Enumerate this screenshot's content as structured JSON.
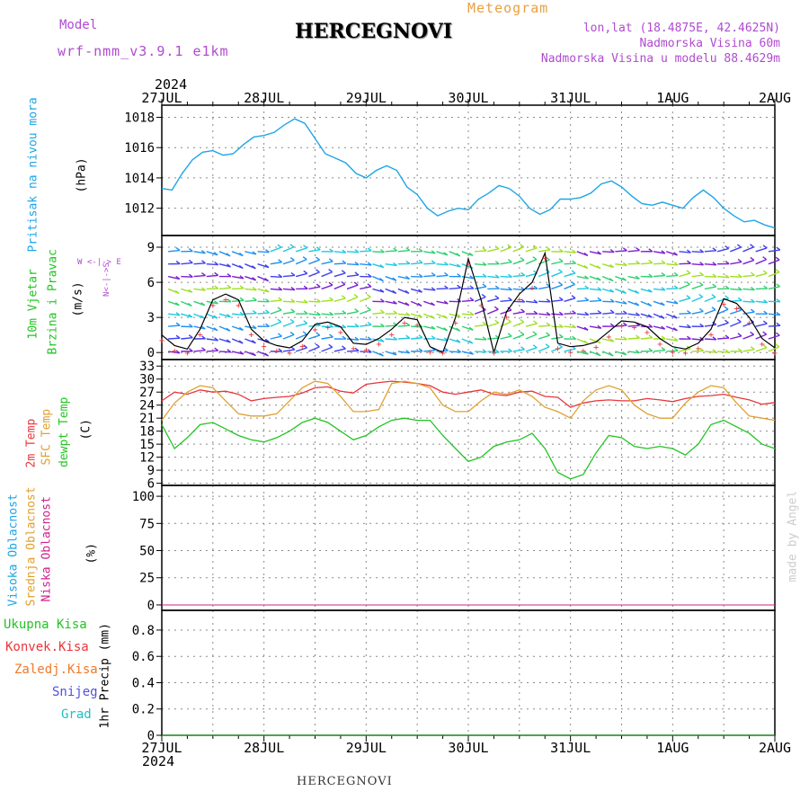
{
  "header": {
    "model_label": "Model",
    "model_name": "wrf-nmm_v3.9.1 e1km",
    "title": "HERCEGNOVI",
    "meteogram_label": "Meteogram",
    "lonlat": "lon,lat (18.4875E, 42.4625N)",
    "altitude": "Nadmorska Visina 60m",
    "model_altitude": "Nadmorska Visina u modelu 88.4629m",
    "year_top": "2024",
    "year_bottom": "2024",
    "footer": "HERCEGNOVI",
    "watermark": "made by Angel"
  },
  "colors": {
    "pressure": "#1ea5e6",
    "temp2m": "#e8363a",
    "sfc": "#e0a030",
    "dewpt": "#22c422",
    "wind_line": "#000000",
    "gust_marks": "#e8363a",
    "purple_text": "#b04ad0",
    "orange_text": "#e8a040"
  },
  "x_axis": {
    "labels": [
      "27JUL",
      "28JUL",
      "29JUL",
      "30JUL",
      "31JUL",
      "1AUG",
      "2AUG"
    ]
  },
  "panel_labels": {
    "pressure": [
      "Pritisak na nivou mora",
      "(hPa)"
    ],
    "wind": [
      "10m Vjetar",
      "Brzina i Pravac",
      "(m/s)"
    ],
    "compass": [
      "W <-|-> E",
      "N<-|->S"
    ],
    "temp": [
      "2m Temp",
      "SFC Temp",
      "dewpt Temp",
      "(C)"
    ],
    "cloud": [
      "Visoka Oblacnost",
      "Srednja Oblacnost",
      "Niska Oblacnost",
      "(%)"
    ],
    "precip_legend": [
      "Ukupna Kisa",
      "Konvek.Kisa",
      "Zaledj.Kisa",
      "Snijeg",
      "Grad"
    ],
    "precip_unit": "1hr Precip (mm)"
  },
  "chart_data": [
    {
      "type": "line",
      "name": "pressure",
      "ylabel": "(hPa)",
      "ylim": [
        1010.2,
        1018.8
      ],
      "yticks": [
        1012,
        1014,
        1016,
        1018
      ],
      "x": [
        0,
        0.1,
        0.2,
        0.3,
        0.4,
        0.5,
        0.6,
        0.7,
        0.8,
        0.9,
        1.0,
        1.1,
        1.2,
        1.3,
        1.4,
        1.5,
        1.6,
        1.7,
        1.8,
        1.9,
        2.0,
        2.1,
        2.2,
        2.3,
        2.4,
        2.5,
        2.6,
        2.7,
        2.8,
        2.9,
        3.0,
        3.1,
        3.2,
        3.3,
        3.4,
        3.5,
        3.6,
        3.7,
        3.8,
        3.9,
        4.0,
        4.1,
        4.2,
        4.3,
        4.4,
        4.5,
        4.6,
        4.7,
        4.8,
        4.9,
        5.0,
        5.1,
        5.2,
        5.3,
        5.4,
        5.5,
        5.6,
        5.7,
        5.8,
        5.9,
        6.0
      ],
      "series": [
        {
          "values": [
            1013.3,
            1013.2,
            1014.3,
            1015.2,
            1015.7,
            1015.8,
            1015.5,
            1015.6,
            1016.2,
            1016.7,
            1016.8,
            1017.0,
            1017.5,
            1017.9,
            1017.6,
            1016.6,
            1015.6,
            1015.3,
            1015.0,
            1014.3,
            1014.0,
            1014.5,
            1014.8,
            1014.5,
            1013.4,
            1012.9,
            1012.0,
            1011.5,
            1011.8,
            1012.0,
            1011.9,
            1012.6,
            1013.0,
            1013.5,
            1013.3,
            1012.8,
            1012.0,
            1011.6,
            1011.9,
            1012.6,
            1012.6,
            1012.7,
            1013.0,
            1013.6,
            1013.8,
            1013.4,
            1012.8,
            1012.3,
            1012.2,
            1012.4,
            1012.2,
            1012.0,
            1012.7,
            1013.2,
            1012.7,
            1012.0,
            1011.5,
            1011.1,
            1011.2,
            1010.9,
            1010.7
          ]
        }
      ]
    },
    {
      "type": "line",
      "name": "wind",
      "ylabel": "(m/s)",
      "ylim": [
        -0.6,
        10
      ],
      "yticks": [
        0,
        3,
        6,
        9
      ],
      "x": [
        0,
        0.125,
        0.25,
        0.375,
        0.5,
        0.625,
        0.75,
        0.875,
        1.0,
        1.125,
        1.25,
        1.375,
        1.5,
        1.625,
        1.75,
        1.875,
        2.0,
        2.125,
        2.25,
        2.375,
        2.5,
        2.625,
        2.75,
        2.875,
        3.0,
        3.125,
        3.25,
        3.375,
        3.5,
        3.625,
        3.75,
        3.875,
        4.0,
        4.125,
        4.25,
        4.375,
        4.5,
        4.625,
        4.75,
        4.875,
        5.0,
        5.125,
        5.25,
        5.375,
        5.5,
        5.625,
        5.75,
        5.875,
        6.0
      ],
      "series": [
        {
          "values": [
            1.5,
            0.6,
            0.3,
            2.0,
            4.5,
            5.0,
            4.5,
            2.0,
            1.0,
            0.6,
            0.4,
            1.0,
            2.4,
            2.6,
            2.2,
            0.8,
            0.7,
            1.2,
            2.0,
            3.0,
            2.8,
            0.5,
            0.0,
            3.0,
            8.0,
            4.5,
            0.0,
            3.5,
            5.0,
            6.0,
            8.5,
            0.8,
            0.5,
            0.6,
            0.9,
            1.8,
            2.7,
            2.6,
            2.2,
            1.2,
            0.5,
            0.3,
            0.8,
            2.0,
            4.6,
            4.2,
            3.0,
            1.2,
            0.4
          ]
        }
      ]
    },
    {
      "type": "line",
      "name": "temperature",
      "ylabel": "(C)",
      "ylim": [
        5.5,
        34.5
      ],
      "yticks": [
        6,
        9,
        12,
        15,
        18,
        21,
        24,
        27,
        30,
        33
      ],
      "x": [
        0,
        0.125,
        0.25,
        0.375,
        0.5,
        0.625,
        0.75,
        0.875,
        1.0,
        1.125,
        1.25,
        1.375,
        1.5,
        1.625,
        1.75,
        1.875,
        2.0,
        2.125,
        2.25,
        2.375,
        2.5,
        2.625,
        2.75,
        2.875,
        3.0,
        3.125,
        3.25,
        3.375,
        3.5,
        3.625,
        3.75,
        3.875,
        4.0,
        4.125,
        4.25,
        4.375,
        4.5,
        4.625,
        4.75,
        4.875,
        5.0,
        5.125,
        5.25,
        5.375,
        5.5,
        5.625,
        5.75,
        5.875,
        6.0
      ],
      "series": [
        {
          "name": "2m Temp",
          "values": [
            25.0,
            27.0,
            26.5,
            27.5,
            27.0,
            27.2,
            26.5,
            25.0,
            25.5,
            25.8,
            26.0,
            26.8,
            28.0,
            28.2,
            27.2,
            26.8,
            28.8,
            29.2,
            29.5,
            29.3,
            29.0,
            28.5,
            27.0,
            26.5,
            27.0,
            27.5,
            26.5,
            26.2,
            27.0,
            27.2,
            26.0,
            25.8,
            23.5,
            24.5,
            25.0,
            25.2,
            25.0,
            25.0,
            25.5,
            25.2,
            24.8,
            25.5,
            26.0,
            26.2,
            26.5,
            25.8,
            25.2,
            24.2,
            24.6
          ]
        },
        {
          "name": "SFC Temp",
          "values": [
            20.5,
            24.5,
            27.0,
            28.5,
            28.0,
            25.0,
            22.0,
            21.5,
            21.5,
            22.0,
            25.0,
            28.0,
            29.5,
            29.0,
            26.0,
            22.5,
            22.5,
            23.0,
            29.0,
            29.5,
            29.0,
            28.0,
            24.0,
            22.5,
            22.5,
            25.0,
            27.0,
            26.5,
            27.5,
            26.0,
            23.5,
            22.5,
            21.0,
            25.0,
            27.5,
            28.5,
            27.5,
            24.0,
            22.0,
            21.0,
            21.0,
            24.5,
            27.0,
            28.5,
            28.0,
            24.5,
            21.5,
            21.0,
            20.5
          ]
        },
        {
          "name": "dewpt Temp",
          "values": [
            19.5,
            14.0,
            16.5,
            19.5,
            20.0,
            18.5,
            17.0,
            16.0,
            15.5,
            16.5,
            18.0,
            20.0,
            21.0,
            20.0,
            18.0,
            16.0,
            17.0,
            19.0,
            20.5,
            21.0,
            20.5,
            20.5,
            17.0,
            14.0,
            11.0,
            12.0,
            14.5,
            15.5,
            16.0,
            17.5,
            14.0,
            8.5,
            7.0,
            8.0,
            13.0,
            17.0,
            16.5,
            14.5,
            14.0,
            14.5,
            14.0,
            12.5,
            15.0,
            19.5,
            20.5,
            19.0,
            17.5,
            15.0,
            14.0
          ]
        }
      ]
    },
    {
      "type": "line",
      "name": "cloud",
      "ylabel": "(%)",
      "ylim": [
        -5,
        110
      ],
      "yticks": [
        0,
        25,
        50,
        75,
        100
      ],
      "x": [
        0,
        6
      ],
      "series": [
        {
          "name": "Visoka Oblacnost",
          "values": [
            0,
            0
          ]
        },
        {
          "name": "Srednja Oblacnost",
          "values": [
            0,
            0
          ]
        },
        {
          "name": "Niska Oblacnost",
          "values": [
            0,
            0
          ]
        }
      ]
    },
    {
      "type": "line",
      "name": "precipitation",
      "ylabel": "1hr Precip (mm)",
      "ylim": [
        0,
        0.95
      ],
      "yticks": [
        0,
        0.2,
        0.4,
        0.6,
        0.8
      ],
      "x": [
        0,
        6
      ],
      "series": [
        {
          "name": "Ukupna Kisa",
          "values": [
            0,
            0
          ]
        }
      ]
    }
  ]
}
